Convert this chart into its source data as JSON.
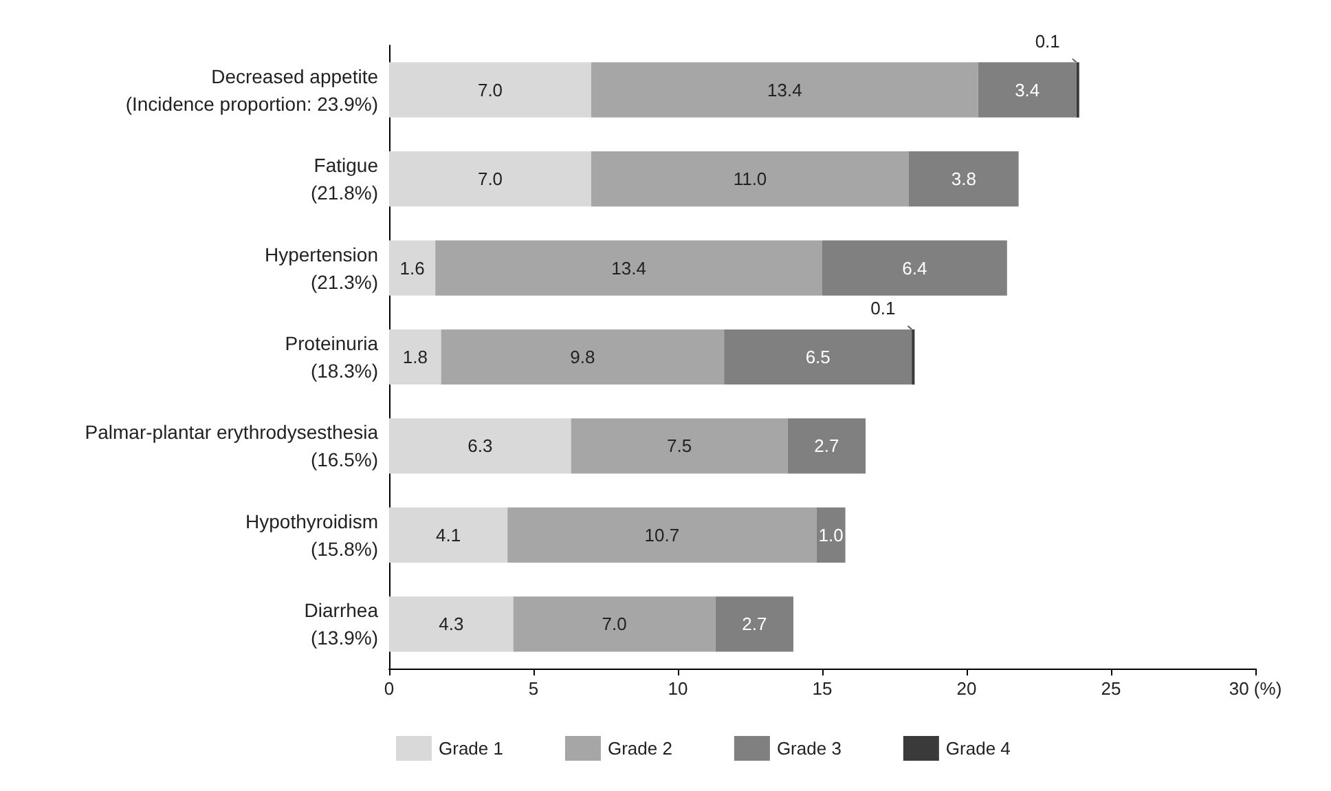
{
  "chart_data": {
    "type": "bar",
    "orientation": "horizontal",
    "stacked": true,
    "categories": [
      "Decreased appetite\n(Incidence proportion: 23.9%)",
      "Fatigue\n(21.8%)",
      "Hypertension\n(21.3%)",
      "Proteinuria\n(18.3%)",
      "Palmar-plantar erythrodysesthesia\n(16.5%)",
      "Hypothyroidism\n(15.8%)",
      "Diarrhea\n(13.9%)"
    ],
    "series": [
      {
        "name": "Grade 1",
        "color": "#d9d9d9",
        "values": [
          7.0,
          7.0,
          1.6,
          1.8,
          6.3,
          4.1,
          4.3
        ],
        "value_labels": [
          "7.0",
          "7.0",
          "1.6",
          "1.8",
          "6.3",
          "4.1",
          "4.3"
        ]
      },
      {
        "name": "Grade 2",
        "color": "#a6a6a6",
        "values": [
          13.4,
          11.0,
          13.4,
          9.8,
          7.5,
          10.7,
          7.0
        ],
        "value_labels": [
          "13.4",
          "11.0",
          "13.4",
          "9.8",
          "7.5",
          "10.7",
          "7.0"
        ]
      },
      {
        "name": "Grade 3",
        "color": "#808080",
        "values": [
          3.4,
          3.8,
          6.4,
          6.5,
          2.7,
          1.0,
          2.7
        ],
        "value_labels": [
          "3.4",
          "3.8",
          "6.4",
          "6.5",
          "2.7",
          "1.0",
          "2.7"
        ]
      },
      {
        "name": "Grade 4",
        "color": "#3a3a3a",
        "values": [
          0.1,
          null,
          null,
          0.1,
          null,
          null,
          null
        ],
        "value_labels": [
          "0.1",
          null,
          null,
          "0.1",
          null,
          null,
          null
        ]
      }
    ],
    "xlim": [
      0,
      30
    ],
    "xticks": [
      0,
      5,
      10,
      15,
      20,
      25,
      {
        "value": 30,
        "label": "30 (%)"
      }
    ],
    "grid": false,
    "legend": "bottom left"
  }
}
